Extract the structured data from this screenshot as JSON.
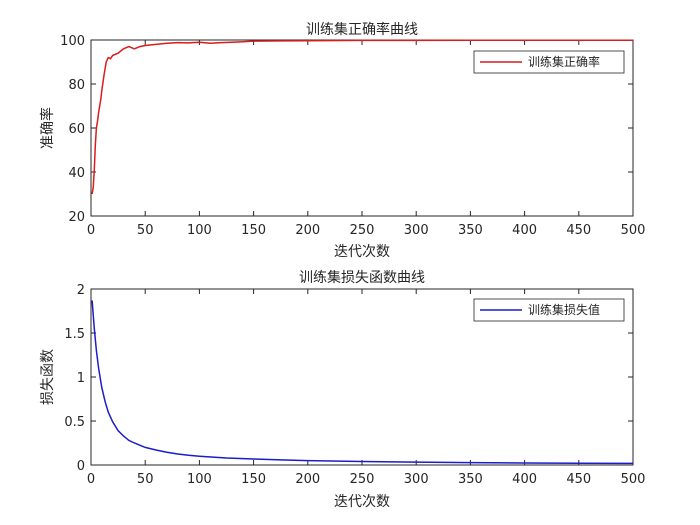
{
  "chart_data": [
    {
      "type": "line",
      "title": "训练集正确率曲线",
      "xlabel": "迭代次数",
      "ylabel": "准确率",
      "xlim": [
        0,
        500
      ],
      "ylim": [
        20,
        100
      ],
      "xticks": [
        0,
        50,
        100,
        150,
        200,
        250,
        300,
        350,
        400,
        450,
        500
      ],
      "yticks": [
        20,
        40,
        60,
        80,
        100
      ],
      "grid": false,
      "legend_location": "top-right",
      "series": [
        {
          "name": "训练集正确率",
          "color": "#d91c1c",
          "x": [
            1,
            2,
            3,
            4,
            5,
            6,
            7,
            8,
            9,
            10,
            12,
            14,
            16,
            18,
            20,
            25,
            30,
            35,
            40,
            45,
            50,
            60,
            70,
            80,
            90,
            100,
            110,
            120,
            130,
            140,
            150,
            175,
            200,
            250,
            300,
            350,
            400,
            450,
            500
          ],
          "y": [
            30,
            33,
            41,
            52,
            60,
            63,
            67,
            70,
            73,
            77,
            84,
            90,
            92,
            91.5,
            93,
            94,
            96,
            97,
            96,
            97,
            97.5,
            98,
            98.5,
            98.8,
            98.7,
            99,
            98.5,
            98.8,
            99,
            99.2,
            99.5,
            99.6,
            99.7,
            99.8,
            99.8,
            99.9,
            99.9,
            99.9,
            99.9
          ]
        }
      ]
    },
    {
      "type": "line",
      "title": "训练集损失函数曲线",
      "xlabel": "迭代次数",
      "ylabel": "损失函数",
      "xlim": [
        0,
        500
      ],
      "ylim": [
        0,
        2
      ],
      "xticks": [
        0,
        50,
        100,
        150,
        200,
        250,
        300,
        350,
        400,
        450,
        500
      ],
      "yticks": [
        0,
        0.5,
        1,
        1.5,
        2
      ],
      "grid": false,
      "legend_location": "top-right",
      "series": [
        {
          "name": "训练集损失值",
          "color": "#1c1cc8",
          "x": [
            1,
            3,
            5,
            7,
            10,
            13,
            16,
            20,
            25,
            30,
            35,
            40,
            50,
            60,
            70,
            80,
            90,
            100,
            125,
            150,
            175,
            200,
            250,
            300,
            350,
            400,
            450,
            500
          ],
          "y": [
            1.87,
            1.55,
            1.3,
            1.1,
            0.88,
            0.72,
            0.6,
            0.49,
            0.39,
            0.33,
            0.28,
            0.25,
            0.2,
            0.17,
            0.145,
            0.125,
            0.11,
            0.1,
            0.08,
            0.068,
            0.058,
            0.05,
            0.04,
            0.033,
            0.027,
            0.023,
            0.02,
            0.018
          ]
        }
      ]
    }
  ]
}
